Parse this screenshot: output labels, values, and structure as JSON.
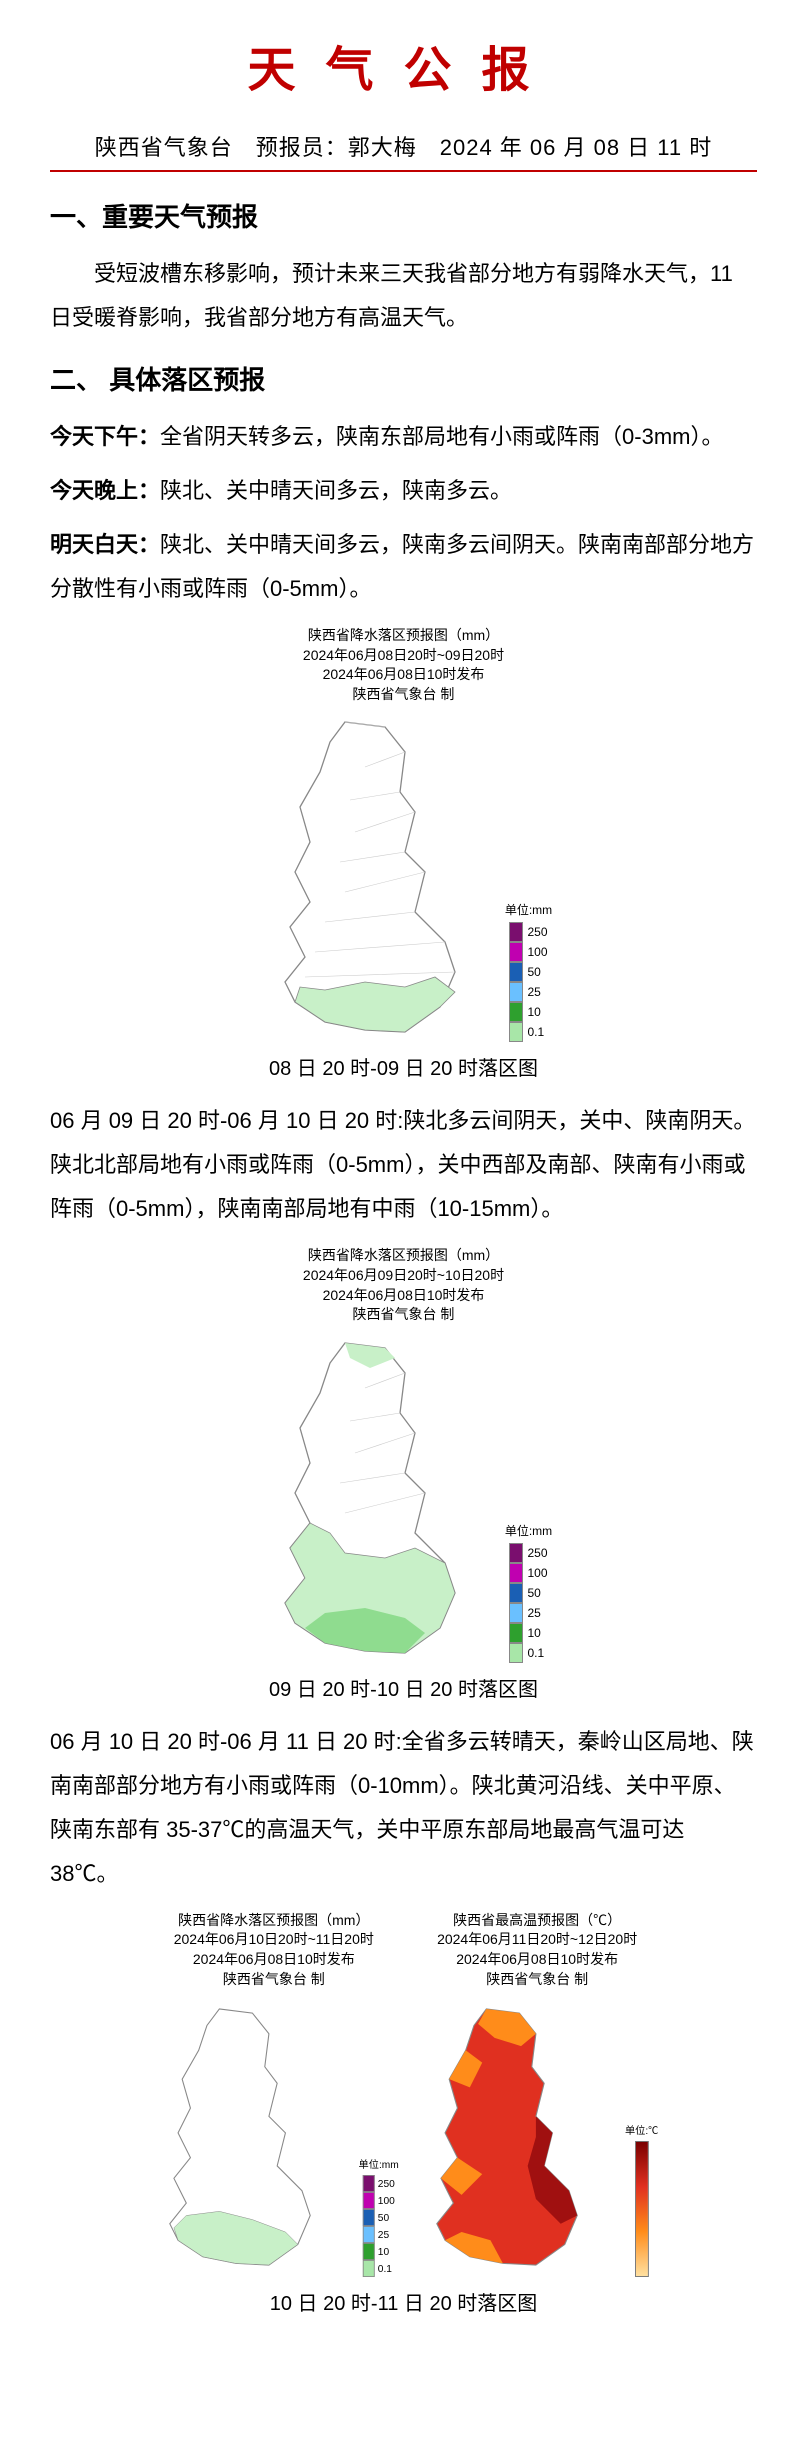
{
  "title": "天气公报",
  "title_color": "#c00000",
  "sub_header": "陕西省气象台　预报员：郭大梅　2024 年 06 月 08 日 11 时",
  "section1": {
    "heading": "一、重要天气预报",
    "body": "受短波槽东移影响，预计未来三天我省部分地方有弱降水天气，11 日受暖脊影响，我省部分地方有高温天气。"
  },
  "section2": {
    "heading": "二、 具体落区预报",
    "p1_label": "今天下午：",
    "p1_text": "全省阴天转多云，陕南东部局地有小雨或阵雨（0-3mm）。",
    "p2_label": "今天晚上：",
    "p2_text": "陕北、关中晴天间多云，陕南多云。",
    "p3_label": "明天白天：",
    "p3_text": "陕北、关中晴天间多云，陕南多云间阴天。陕南南部部分地方分散性有小雨或阵雨（0-5mm）。"
  },
  "map1": {
    "header_l1": "陕西省降水落区预报图（mm）",
    "header_l2": "2024年06月08日20时~09日20时",
    "header_l3": "2024年06月08日10时发布",
    "header_l4": "陕西省气象台 制",
    "caption": "08 日 20 时-09 日 20 时落区图"
  },
  "forecast2": "06 月 09 日 20 时-06 月 10 日 20 时:陕北多云间阴天，关中、陕南阴天。陕北北部局地有小雨或阵雨（0-5mm），关中西部及南部、陕南有小雨或阵雨（0-5mm），陕南南部局地有中雨（10-15mm）。",
  "map2": {
    "header_l1": "陕西省降水落区预报图（mm）",
    "header_l2": "2024年06月09日20时~10日20时",
    "header_l3": "2024年06月08日10时发布",
    "header_l4": "陕西省气象台 制",
    "caption": "09 日 20 时-10 日 20 时落区图"
  },
  "forecast3": "06 月 10 日 20 时-06 月 11 日 20 时:全省多云转晴天，秦岭山区局地、陕南南部部分地方有小雨或阵雨（0-10mm）。陕北黄河沿线、关中平原、陕南东部有 35-37℃的高温天气，关中平原东部局地最高气温可达 38℃。",
  "map3": {
    "left": {
      "header_l1": "陕西省降水落区预报图（mm）",
      "header_l2": "2024年06月10日20时~11日20时",
      "header_l3": "2024年06月08日10时发布",
      "header_l4": "陕西省气象台 制"
    },
    "right": {
      "header_l1": "陕西省最高温预报图（℃）",
      "header_l2": "2024年06月11日20时~12日20时",
      "header_l3": "2024年06月08日10时发布",
      "header_l4": "陕西省气象台 制"
    },
    "caption": "10 日 20 时-11 日 20 时落区图"
  },
  "precip_legend": {
    "title": "单位:mm",
    "items": [
      {
        "color": "#7a0e6e",
        "label": "250"
      },
      {
        "color": "#c000b0",
        "label": "100"
      },
      {
        "color": "#1a5fb4",
        "label": "50"
      },
      {
        "color": "#6ac0ff",
        "label": "25"
      },
      {
        "color": "#2ea02e",
        "label": "10"
      },
      {
        "color": "#a8e6a8",
        "label": "0.1"
      }
    ]
  },
  "temp_legend": {
    "title": "单位:℃",
    "gradient_top": "#7a0000",
    "gradient_bottom": "#ffe0a0"
  },
  "map_style": {
    "outline": "#888888",
    "fill_blank": "#ffffff",
    "fill_light_green": "#c8f0c8",
    "fill_green": "#8fdc8f",
    "fill_orange": "#ff8c1a",
    "fill_red": "#e03020",
    "fill_darkred": "#a01010"
  }
}
